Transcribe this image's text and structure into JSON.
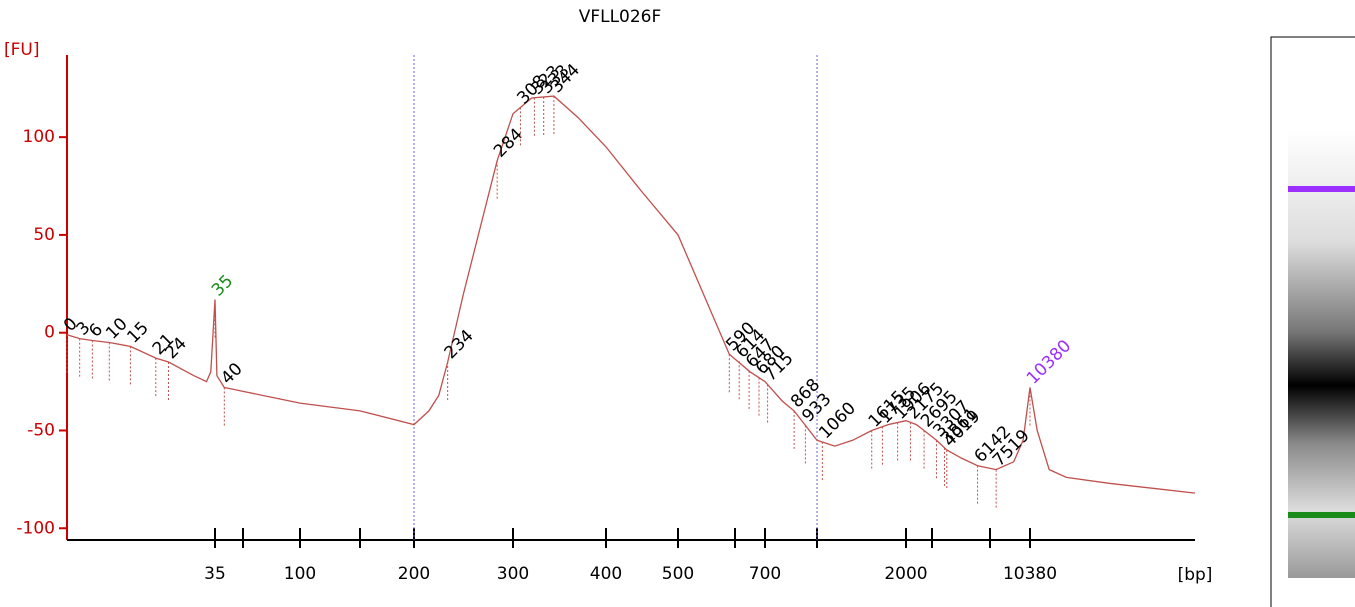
{
  "chart_data": {
    "type": "line",
    "title": "VFLL026F",
    "y_label": "[FU]",
    "x_label": "[bp]",
    "xlim": [
      0,
      20000
    ],
    "ylim": [
      -106,
      142
    ],
    "yticks": [
      100,
      50,
      0,
      -50,
      -100
    ],
    "xticks": [
      {
        "value": 35,
        "label": "35"
      },
      {
        "value": 50,
        "label": null
      },
      {
        "value": 100,
        "label": "100"
      },
      {
        "value": 150,
        "label": null
      },
      {
        "value": 200,
        "label": "200"
      },
      {
        "value": 300,
        "label": "300"
      },
      {
        "value": 400,
        "label": "400"
      },
      {
        "value": 500,
        "label": "500"
      },
      {
        "value": 600,
        "label": null
      },
      {
        "value": 700,
        "label": "700"
      },
      {
        "value": 1000,
        "label": null
      },
      {
        "value": 2000,
        "label": "2000"
      },
      {
        "value": 3000,
        "label": null
      },
      {
        "value": 7000,
        "label": null
      },
      {
        "value": 10380,
        "label": "10380"
      }
    ],
    "region": [
      200,
      1000
    ],
    "axis_color": "#cc0000",
    "series": [
      {
        "name": "VFLL026F",
        "color": "#c0504d",
        "x": [
          0,
          3,
          6,
          10,
          15,
          21,
          24,
          30,
          33,
          34,
          35,
          36,
          40,
          45,
          50,
          75,
          100,
          150,
          200,
          215,
          225,
          234,
          250,
          270,
          284,
          300,
          320,
          344,
          370,
          400,
          450,
          500,
          590,
          650,
          700,
          800,
          868,
          1000,
          1200,
          1400,
          1615,
          1800,
          2000,
          2400,
          2695,
          3307,
          4019,
          5000,
          6142,
          7519,
          9000,
          9800,
          10380,
          10800,
          11500,
          12500,
          15000,
          18000,
          20000
        ],
        "values": [
          -1,
          -3,
          -4,
          -5,
          -7,
          -13,
          -15,
          -22,
          -25,
          -20,
          17,
          -22,
          -28,
          -29,
          -30,
          -33,
          -36,
          -40,
          -47,
          -40,
          -32,
          -15,
          20,
          60,
          88,
          112,
          120,
          121,
          110,
          95,
          72,
          50,
          -11,
          -20,
          -25,
          -35,
          -40,
          -55,
          -58,
          -55,
          -50,
          -47,
          -45,
          -47,
          -50,
          -55,
          -60,
          -64,
          -68,
          -70,
          -66,
          -55,
          -28,
          -50,
          -70,
          -74,
          -77,
          -80,
          -82
        ]
      }
    ],
    "peaks": [
      0,
      3,
      6,
      10,
      15,
      21,
      24,
      40,
      234,
      284,
      308,
      323,
      333,
      344,
      590,
      614,
      647,
      680,
      715,
      868,
      933,
      1060,
      1615,
      1735,
      1906,
      2175,
      2695,
      3307,
      3861,
      4019,
      6142,
      7519
    ],
    "marker_peaks": [
      {
        "bp": 35,
        "color": "#1a8a1a"
      },
      {
        "bp": 10380,
        "color": "#9b30ff"
      }
    ]
  }
}
